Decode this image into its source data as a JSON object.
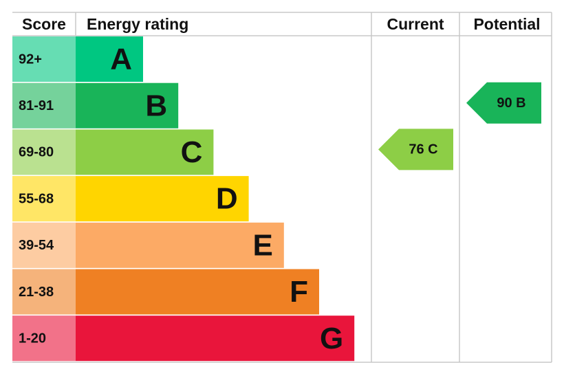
{
  "headers": [
    "Score",
    "Energy rating",
    "Current",
    "Potential"
  ],
  "bands": [
    {
      "score": "92+",
      "letter": "A",
      "color": "#00c781"
    },
    {
      "score": "81-91",
      "letter": "B",
      "color": "#19b459"
    },
    {
      "score": "69-80",
      "letter": "C",
      "color": "#8dce46"
    },
    {
      "score": "55-68",
      "letter": "D",
      "color": "#ffd500"
    },
    {
      "score": "39-54",
      "letter": "E",
      "color": "#fcaa65"
    },
    {
      "score": "21-38",
      "letter": "F",
      "color": "#ef8023"
    },
    {
      "score": "1-20",
      "letter": "G",
      "color": "#e9153b"
    }
  ],
  "current": {
    "label": "76 C",
    "color": "#8dce46"
  },
  "potential": {
    "label": "90 B",
    "color": "#19b459"
  }
}
